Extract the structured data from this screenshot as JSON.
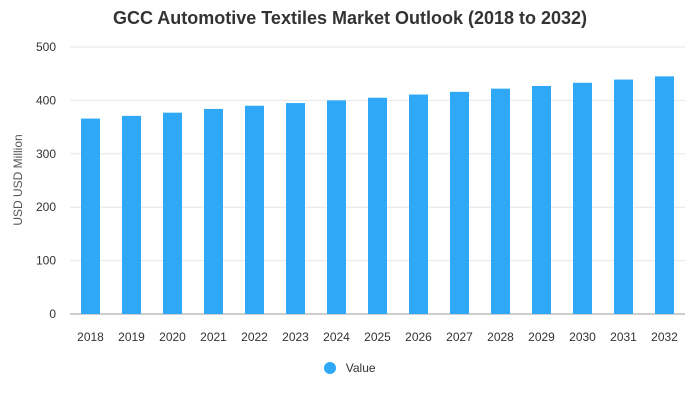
{
  "title": "GCC Automotive Textiles Market Outlook (2018 to 2032)",
  "colors": {
    "bar": "#2ea8f7",
    "grid": "#e6e6e6",
    "axis": "#9e9e9e",
    "text": "#333333"
  },
  "chart_data": {
    "type": "bar",
    "title": "GCC Automotive Textiles Market Outlook (2018 to 2032)",
    "xlabel": "",
    "ylabel": "USD USD Million",
    "ylim": [
      0,
      500
    ],
    "yticks": [
      0,
      100,
      200,
      300,
      400,
      500
    ],
    "grid": true,
    "legend_position": "bottom",
    "categories": [
      "2018",
      "2019",
      "2020",
      "2021",
      "2022",
      "2023",
      "2024",
      "2025",
      "2026",
      "2027",
      "2028",
      "2029",
      "2030",
      "2031",
      "2032"
    ],
    "series": [
      {
        "name": "Value",
        "values": [
          366,
          371,
          377,
          384,
          390,
          395,
          400,
          405,
          411,
          416,
          422,
          427,
          433,
          439,
          445
        ]
      }
    ]
  }
}
